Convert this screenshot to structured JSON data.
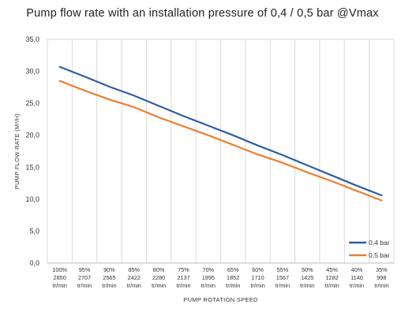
{
  "chart_data": {
    "type": "line",
    "title": "Pump flow rate with an installation pressure of 0,4 / 0,5 bar @Vmax",
    "xlabel": "PUMP ROTATION SPEED",
    "ylabel": "PUMP FLOW RATE (M³/H)",
    "ylim": [
      0,
      35
    ],
    "yticks": [
      "0,0",
      "5,0",
      "10,0",
      "15,0",
      "20,0",
      "25,0",
      "30,0",
      "35,0"
    ],
    "grid": "vertical",
    "legend_position": "bottom-right",
    "categories": [
      {
        "pct": "100%",
        "rpm": "2850",
        "unit": "tr/min"
      },
      {
        "pct": "95%",
        "rpm": "2707",
        "unit": "tr/min"
      },
      {
        "pct": "90%",
        "rpm": "2565",
        "unit": "tr/min"
      },
      {
        "pct": "85%",
        "rpm": "2422",
        "unit": "tr/min"
      },
      {
        "pct": "80%",
        "rpm": "2280",
        "unit": "tr/min"
      },
      {
        "pct": "75%",
        "rpm": "2137",
        "unit": "tr/min"
      },
      {
        "pct": "70%",
        "rpm": "1995",
        "unit": "tr/min"
      },
      {
        "pct": "65%",
        "rpm": "1852",
        "unit": "tr/min"
      },
      {
        "pct": "60%",
        "rpm": "1710",
        "unit": "tr/min"
      },
      {
        "pct": "55%",
        "rpm": "1567",
        "unit": "tr/min"
      },
      {
        "pct": "50%",
        "rpm": "1425",
        "unit": "tr/min"
      },
      {
        "pct": "45%",
        "rpm": "1282",
        "unit": "tr/min"
      },
      {
        "pct": "40%",
        "rpm": "1140",
        "unit": "tr/min"
      },
      {
        "pct": "35%",
        "rpm": "998",
        "unit": "tr/min"
      }
    ],
    "series": [
      {
        "name": "0,4 bar",
        "color": "#2e5f9e",
        "values": [
          30.7,
          29.2,
          27.6,
          26.2,
          24.6,
          23.0,
          21.5,
          20.0,
          18.4,
          16.9,
          15.3,
          13.7,
          12.1,
          10.6
        ]
      },
      {
        "name": "0,5 bar",
        "color": "#ed7d31",
        "values": [
          28.5,
          27.0,
          25.6,
          24.4,
          22.8,
          21.4,
          20.0,
          18.5,
          17.0,
          15.7,
          14.2,
          12.8,
          11.3,
          9.8
        ]
      }
    ]
  }
}
